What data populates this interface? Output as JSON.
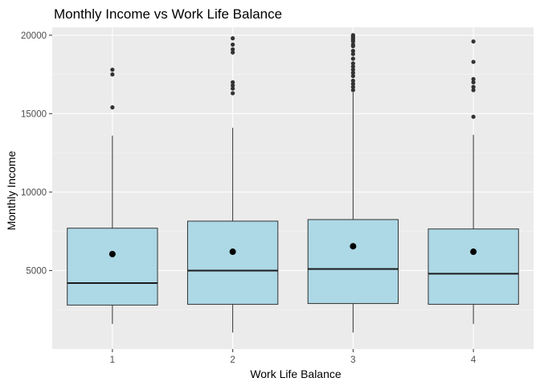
{
  "chart_data": {
    "type": "box",
    "title": "Monthly Income vs Work Life Balance",
    "xlabel": "Work Life Balance",
    "ylabel": "Monthly Income",
    "categories": [
      "1",
      "2",
      "3",
      "4"
    ],
    "ylim": [
      0,
      20500
    ],
    "yticks": [
      5000,
      10000,
      15000,
      20000
    ],
    "y_tick_labels": [
      "5000",
      "10000",
      "15000",
      "20000"
    ],
    "grid": true,
    "legend": "none",
    "colors": {
      "box_fill": "#add8e6",
      "box_stroke": "#333333",
      "panel_bg": "#ebebeb",
      "grid_major": "#ffffff",
      "grid_minor": "#f5f5f5",
      "point": "#333333",
      "mean_point": "#000000"
    },
    "boxes": [
      {
        "category": "1",
        "whisker_low": 1600,
        "q1": 2800,
        "median": 4200,
        "q3": 7700,
        "whisker_high": 13600,
        "mean": 6050,
        "outliers": [
          17800,
          17500,
          15400
        ]
      },
      {
        "category": "2",
        "whisker_low": 1050,
        "q1": 2850,
        "median": 5000,
        "q3": 8150,
        "whisker_high": 14100,
        "mean": 6200,
        "outliers": [
          19800,
          19400,
          19100,
          18900,
          17000,
          16800,
          16600,
          16300
        ]
      },
      {
        "category": "3",
        "whisker_low": 1050,
        "q1": 2900,
        "median": 5100,
        "q3": 8250,
        "whisker_high": 16350,
        "mean": 6550,
        "outliers": [
          20000,
          19900,
          19800,
          19700,
          19600,
          19400,
          19300,
          19000,
          18800,
          18500,
          18200,
          18000,
          17800,
          17600,
          17400,
          17100,
          16900,
          16700,
          16500
        ]
      },
      {
        "category": "4",
        "whisker_low": 1600,
        "q1": 2850,
        "median": 4800,
        "q3": 7650,
        "whisker_high": 13650,
        "mean": 6200,
        "outliers": [
          19600,
          18300,
          17200,
          17000,
          16700,
          16500,
          14800
        ]
      }
    ]
  }
}
